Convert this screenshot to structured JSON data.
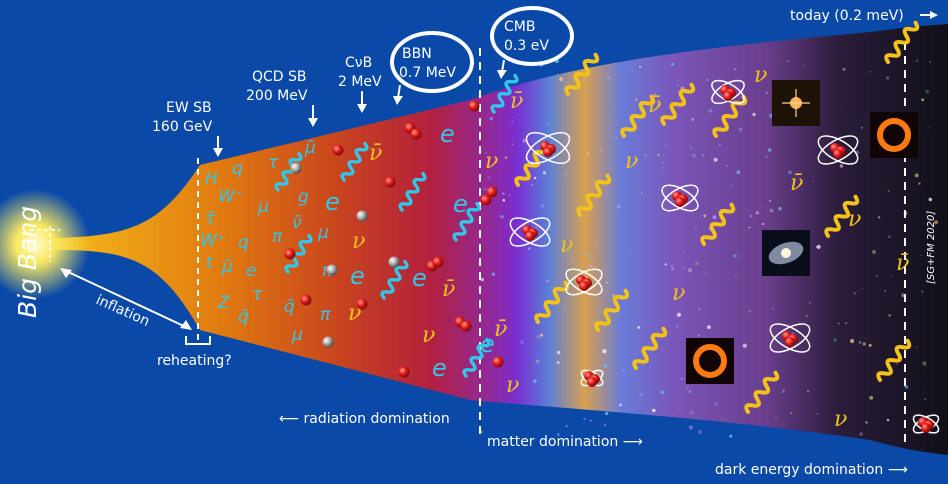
{
  "big_bang": "Big Bang",
  "inflation": "inflation",
  "reheating": "reheating?",
  "events": {
    "ewsb_name": "EW SB",
    "ewsb_value": "160 GeV",
    "qcdsb_name": "QCD SB",
    "qcdsb_value": "200 MeV",
    "cnub_name": "CνB",
    "cnub_value": "2 MeV",
    "bbn_name": "BBN",
    "bbn_value": "0.7 MeV",
    "cmb_name": "CMB",
    "cmb_value": "0.3 eV"
  },
  "today": "today (0.2 meV)",
  "eras": {
    "radiation": "⟵ radiation domination",
    "matter": "matter domination ⟶",
    "dark_energy": "dark energy domination ⟶"
  },
  "credit": "[SG+FM 2020]",
  "particle_symbols": [
    "H",
    "q",
    "τ",
    "μ̄",
    "ν̄",
    "W⁻",
    "μ",
    "g",
    "e",
    "ν",
    "τ̄",
    "W⁺",
    "q",
    "π",
    "ν̄",
    "t",
    "μ̄",
    "e",
    "π",
    "Z",
    "q̄",
    "τ",
    "q̄",
    "μ",
    "π"
  ],
  "neutrino_symbol": "ν",
  "antineutrino_symbol": "ν̄",
  "electron_symbol": "e",
  "colors": {
    "background": "#0a49a8",
    "photon": "#f2c21a",
    "gluon": "#33c6e8",
    "text": "#ffffff"
  }
}
